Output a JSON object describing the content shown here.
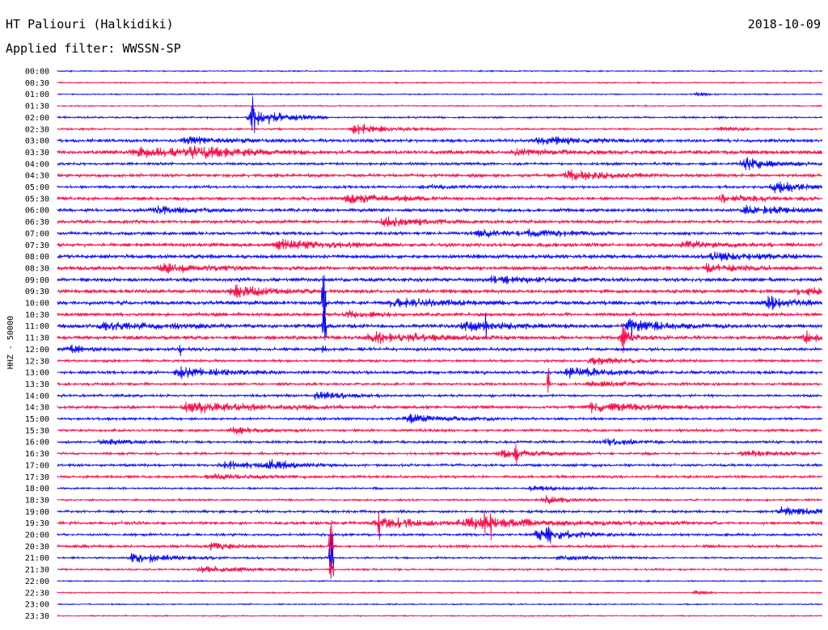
{
  "header": {
    "station": "HT Paliouri (Halkidiki)",
    "date": "2018-10-09",
    "filter": "Applied filter: WWSSN-SP"
  },
  "chart_data": {
    "type": "seismogram",
    "ylabel": "HHZ - 50000",
    "trace_colors": [
      "#0000ff",
      "#ff0040"
    ],
    "row_labels": [
      "00:00",
      "00:30",
      "01:00",
      "01:30",
      "02:00",
      "02:30",
      "03:00",
      "03:30",
      "04:00",
      "04:30",
      "05:00",
      "05:30",
      "06:00",
      "06:30",
      "07:00",
      "07:30",
      "08:00",
      "08:30",
      "09:00",
      "09:30",
      "10:00",
      "10:30",
      "11:00",
      "11:30",
      "12:00",
      "12:30",
      "13:00",
      "13:30",
      "14:00",
      "14:30",
      "15:00",
      "15:30",
      "16:00",
      "16:30",
      "17:00",
      "17:30",
      "18:00",
      "18:30",
      "19:00",
      "19:30",
      "20:00",
      "20:30",
      "21:00",
      "21:30",
      "22:00",
      "22:30",
      "23:00",
      "23:30"
    ],
    "noise": [
      1,
      1,
      1,
      1,
      1.5,
      1.5,
      2.5,
      3,
      2,
      2.5,
      2,
      2.5,
      2.5,
      2.5,
      2.5,
      3,
      3,
      3,
      3,
      3,
      3,
      2.5,
      3,
      3,
      2.5,
      2,
      2.5,
      2,
      2,
      2.5,
      2,
      2,
      2,
      2,
      2,
      2,
      1.5,
      1.5,
      2,
      2.5,
      2,
      2,
      1.5,
      1.5,
      1,
      1,
      1,
      1
    ],
    "events": [
      {
        "row": 2,
        "at": 0.84,
        "amp": 3,
        "dur": 0.01
      },
      {
        "row": 4,
        "at": 0.255,
        "amp": 14,
        "dur": 0.04
      },
      {
        "row": 5,
        "at": 0.39,
        "amp": 8,
        "dur": 0.05
      },
      {
        "row": 5,
        "at": 0.87,
        "amp": 3,
        "dur": 0.03
      },
      {
        "row": 6,
        "at": 0.17,
        "amp": 5,
        "dur": 0.06
      },
      {
        "row": 6,
        "at": 0.63,
        "amp": 6,
        "dur": 0.06
      },
      {
        "row": 7,
        "at": 0.105,
        "amp": 7,
        "dur": 0.07
      },
      {
        "row": 7,
        "at": 0.175,
        "amp": 8,
        "dur": 0.06
      },
      {
        "row": 7,
        "at": 0.6,
        "amp": 5,
        "dur": 0.05
      },
      {
        "row": 8,
        "at": 0.9,
        "amp": 9,
        "dur": 0.04
      },
      {
        "row": 9,
        "at": 0.67,
        "amp": 8,
        "dur": 0.05
      },
      {
        "row": 10,
        "at": 0.94,
        "amp": 9,
        "dur": 0.04
      },
      {
        "row": 10,
        "at": 0.48,
        "amp": 3,
        "dur": 0.05
      },
      {
        "row": 11,
        "at": 0.38,
        "amp": 7,
        "dur": 0.06
      },
      {
        "row": 11,
        "at": 0.87,
        "amp": 6,
        "dur": 0.05
      },
      {
        "row": 12,
        "at": 0.13,
        "amp": 6,
        "dur": 0.05
      },
      {
        "row": 12,
        "at": 0.9,
        "amp": 7,
        "dur": 0.06
      },
      {
        "row": 13,
        "at": 0.43,
        "amp": 8,
        "dur": 0.05
      },
      {
        "row": 14,
        "at": 0.55,
        "amp": 5,
        "dur": 0.06
      },
      {
        "row": 14,
        "at": 0.62,
        "amp": 4,
        "dur": 0.05
      },
      {
        "row": 15,
        "at": 0.29,
        "amp": 7,
        "dur": 0.06
      },
      {
        "row": 15,
        "at": 0.82,
        "amp": 5,
        "dur": 0.05
      },
      {
        "row": 16,
        "at": 0.86,
        "amp": 7,
        "dur": 0.05
      },
      {
        "row": 17,
        "at": 0.14,
        "amp": 7,
        "dur": 0.05
      },
      {
        "row": 17,
        "at": 0.85,
        "amp": 5,
        "dur": 0.05
      },
      {
        "row": 18,
        "at": 0.57,
        "amp": 5,
        "dur": 0.06
      },
      {
        "row": 19,
        "at": 0.23,
        "amp": 8,
        "dur": 0.05
      },
      {
        "row": 19,
        "at": 0.97,
        "amp": 6,
        "dur": 0.05
      },
      {
        "row": 20,
        "at": 0.44,
        "amp": 7,
        "dur": 0.06
      },
      {
        "row": 20,
        "at": 0.93,
        "amp": 8,
        "dur": 0.05
      },
      {
        "row": 21,
        "at": 0.38,
        "amp": 4,
        "dur": 0.05
      },
      {
        "row": 22,
        "at": 0.06,
        "amp": 6,
        "dur": 0.07
      },
      {
        "row": 22,
        "at": 0.53,
        "amp": 7,
        "dur": 0.06
      },
      {
        "row": 22,
        "at": 0.75,
        "amp": 9,
        "dur": 0.05
      },
      {
        "row": 23,
        "at": 0.41,
        "amp": 8,
        "dur": 0.08
      },
      {
        "row": 23,
        "at": 0.74,
        "amp": 10,
        "dur": 0.02
      },
      {
        "row": 23,
        "at": 0.98,
        "amp": 8,
        "dur": 0.03
      },
      {
        "row": 24,
        "at": 0.02,
        "amp": 5,
        "dur": 0.02
      },
      {
        "row": 25,
        "at": 0.7,
        "amp": 7,
        "dur": 0.05
      },
      {
        "row": 26,
        "at": 0.16,
        "amp": 9,
        "dur": 0.05
      },
      {
        "row": 26,
        "at": 0.67,
        "amp": 8,
        "dur": 0.05
      },
      {
        "row": 27,
        "at": 0.7,
        "amp": 5,
        "dur": 0.05
      },
      {
        "row": 28,
        "at": 0.34,
        "amp": 6,
        "dur": 0.04
      },
      {
        "row": 29,
        "at": 0.17,
        "amp": 7,
        "dur": 0.1
      },
      {
        "row": 29,
        "at": 0.7,
        "amp": 7,
        "dur": 0.07
      },
      {
        "row": 30,
        "at": 0.46,
        "amp": 7,
        "dur": 0.05
      },
      {
        "row": 31,
        "at": 0.23,
        "amp": 5,
        "dur": 0.04
      },
      {
        "row": 32,
        "at": 0.06,
        "amp": 4,
        "dur": 0.04
      },
      {
        "row": 32,
        "at": 0.72,
        "amp": 5,
        "dur": 0.04
      },
      {
        "row": 33,
        "at": 0.58,
        "amp": 6,
        "dur": 0.05
      },
      {
        "row": 33,
        "at": 0.9,
        "amp": 5,
        "dur": 0.04
      },
      {
        "row": 34,
        "at": 0.22,
        "amp": 7,
        "dur": 0.04
      },
      {
        "row": 34,
        "at": 0.28,
        "amp": 6,
        "dur": 0.04
      },
      {
        "row": 35,
        "at": 0.2,
        "amp": 4,
        "dur": 0.05
      },
      {
        "row": 36,
        "at": 0.62,
        "amp": 4,
        "dur": 0.04
      },
      {
        "row": 37,
        "at": 0.64,
        "amp": 7,
        "dur": 0.03
      },
      {
        "row": 38,
        "at": 0.95,
        "amp": 8,
        "dur": 0.04
      },
      {
        "row": 39,
        "at": 0.42,
        "amp": 9,
        "dur": 0.05
      },
      {
        "row": 39,
        "at": 0.53,
        "amp": 8,
        "dur": 0.12
      },
      {
        "row": 40,
        "at": 0.63,
        "amp": 9,
        "dur": 0.05
      },
      {
        "row": 41,
        "at": 0.2,
        "amp": 5,
        "dur": 0.04
      },
      {
        "row": 42,
        "at": 0.1,
        "amp": 8,
        "dur": 0.05
      },
      {
        "row": 42,
        "at": 0.66,
        "amp": 4,
        "dur": 0.04
      },
      {
        "row": 43,
        "at": 0.19,
        "amp": 6,
        "dur": 0.06
      },
      {
        "row": 45,
        "at": 0.84,
        "amp": 4,
        "dur": 0.01
      }
    ],
    "spikes": [
      {
        "row": 4,
        "at": 0.255,
        "amp": 18
      },
      {
        "row": 20,
        "at": 0.348,
        "amp": 80
      },
      {
        "row": 22,
        "at": 0.348,
        "amp": 60
      },
      {
        "row": 23,
        "at": 0.74,
        "amp": 18
      },
      {
        "row": 24,
        "at": 0.16,
        "amp": 10
      },
      {
        "row": 24,
        "at": 0.348,
        "amp": 10
      },
      {
        "row": 22,
        "at": 0.56,
        "amp": 14
      },
      {
        "row": 22,
        "at": 0.75,
        "amp": 10
      },
      {
        "row": 27,
        "at": 0.643,
        "amp": 28
      },
      {
        "row": 33,
        "at": 0.6,
        "amp": 10
      },
      {
        "row": 39,
        "at": 0.42,
        "amp": 14
      },
      {
        "row": 39,
        "at": 0.56,
        "amp": 14
      },
      {
        "row": 39,
        "at": 0.567,
        "amp": 16
      },
      {
        "row": 40,
        "at": 0.643,
        "amp": 14
      },
      {
        "row": 41,
        "at": 0.358,
        "amp": 60
      },
      {
        "row": 42,
        "at": 0.358,
        "amp": 40
      },
      {
        "row": 43,
        "at": 0.358,
        "amp": 30
      }
    ]
  }
}
